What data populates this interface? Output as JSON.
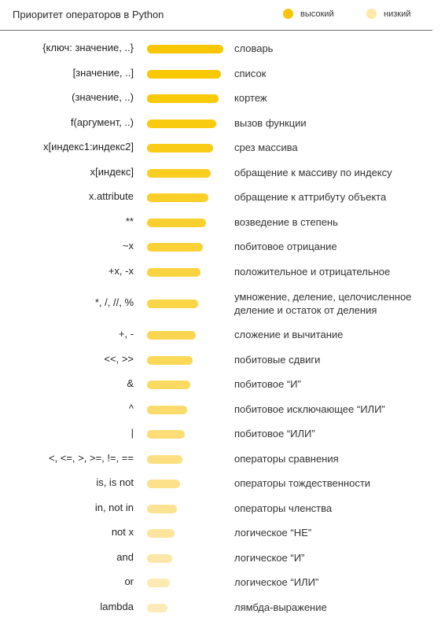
{
  "header": {
    "title": "Приоритет операторов в Python",
    "legend": [
      {
        "label": "высокий",
        "color": "#f7c600"
      },
      {
        "label": "низкий",
        "color": "#fdeaa8"
      }
    ]
  },
  "operators": [
    {
      "op": "{ключ: значение, ..}",
      "desc": "словарь",
      "level": 1.0,
      "color": "#f8c700"
    },
    {
      "op": "[значение, ..]",
      "desc": "список",
      "level": 0.97,
      "color": "#f8c800"
    },
    {
      "op": "(значение, ..)",
      "desc": "кортеж",
      "level": 0.94,
      "color": "#f8ca08"
    },
    {
      "op": "f(аргумент, ..)",
      "desc": "вызов функции",
      "level": 0.905,
      "color": "#f9cb10"
    },
    {
      "op": "x[индекс1:индекс2]",
      "desc": "срез массива",
      "level": 0.87,
      "color": "#f9cc18"
    },
    {
      "op": "x[индекс]",
      "desc": "обращение к массиву по индексу",
      "level": 0.84,
      "color": "#f9ce20"
    },
    {
      "op": "x.attribute",
      "desc": "обращение к аттрибуту объекта",
      "level": 0.805,
      "color": "#f9cf28"
    },
    {
      "op": "**",
      "desc": "возведение в степень",
      "level": 0.77,
      "color": "#fad030"
    },
    {
      "op": "~x",
      "desc": "побитовое отрицание",
      "level": 0.735,
      "color": "#fad238"
    },
    {
      "op": "+x, -x",
      "desc": "положительное и отрицательное",
      "level": 0.705,
      "color": "#fad440"
    },
    {
      "op": "*, /, //, %",
      "desc": "умножение, деление, целочисленное деление и остаток от деления",
      "level": 0.665,
      "color": "#fad548"
    },
    {
      "op": "+, -",
      "desc": "сложение и вычитание",
      "level": 0.635,
      "color": "#fbd650"
    },
    {
      "op": "<<, >>",
      "desc": "побитовые сдвиги",
      "level": 0.6,
      "color": "#fbd858"
    },
    {
      "op": "&",
      "desc": "побитовое “И”",
      "level": 0.565,
      "color": "#fbda62"
    },
    {
      "op": "^",
      "desc": "побитовое исключающее “ИЛИ”",
      "level": 0.53,
      "color": "#fbdb6c"
    },
    {
      "op": "|",
      "desc": "побитовое “ИЛИ”",
      "level": 0.495,
      "color": "#fcdd76"
    },
    {
      "op": "<, <=, >, >=, !=, ==",
      "desc": "операторы сравнения",
      "level": 0.46,
      "color": "#fcdf80"
    },
    {
      "op": "is, is not",
      "desc": "операторы тождественности",
      "level": 0.43,
      "color": "#fce18a"
    },
    {
      "op": "in, not in",
      "desc": "операторы членства",
      "level": 0.395,
      "color": "#fce394"
    },
    {
      "op": "not x",
      "desc": "логическое “НЕ”",
      "level": 0.36,
      "color": "#fde59e"
    },
    {
      "op": "and",
      "desc": "логическое “И”",
      "level": 0.33,
      "color": "#fde7a8"
    },
    {
      "op": "or",
      "desc": "логическое “ИЛИ”",
      "level": 0.3,
      "color": "#fde9b2"
    },
    {
      "op": "lambda",
      "desc": "лямбда-выражение",
      "level": 0.27,
      "color": "#fdebba"
    }
  ]
}
